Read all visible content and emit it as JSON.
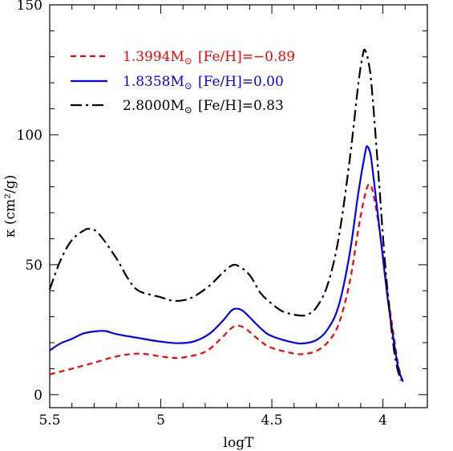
{
  "chart_data": {
    "type": "line",
    "title": "",
    "xlabel": "logT",
    "ylabel": "κ (cm²/g)",
    "xlim": [
      5.5,
      3.8
    ],
    "ylim": [
      -5,
      150
    ],
    "x_reversed": true,
    "grid": false,
    "legend_position": "top-left",
    "x_ticks": [
      {
        "value": 5.5,
        "label": "5.5"
      },
      {
        "value": 5.0,
        "label": "5"
      },
      {
        "value": 4.5,
        "label": "4.5"
      },
      {
        "value": 4.0,
        "label": "4"
      }
    ],
    "y_ticks": [
      {
        "value": 0,
        "label": "0"
      },
      {
        "value": 50,
        "label": "50"
      },
      {
        "value": 100,
        "label": "100"
      },
      {
        "value": 150,
        "label": "150"
      }
    ],
    "series": [
      {
        "name": "1.3994M⊙ [Fe/H]=−0.89",
        "mass": "1.3994M",
        "sun": "⊙",
        "feh": "[Fe/H]=−0.89",
        "color": "#ff0000",
        "dash": "dashed",
        "points": [
          [
            5.5,
            7.8
          ],
          [
            5.4,
            10.0
          ],
          [
            5.3,
            12.3
          ],
          [
            5.2,
            14.7
          ],
          [
            5.1,
            15.8
          ],
          [
            5.0,
            14.7
          ],
          [
            4.95,
            14.2
          ],
          [
            4.9,
            14.3
          ],
          [
            4.8,
            16.5
          ],
          [
            4.73,
            21.5
          ],
          [
            4.69,
            25.0
          ],
          [
            4.66,
            26.5
          ],
          [
            4.62,
            25.5
          ],
          [
            4.55,
            20.5
          ],
          [
            4.5,
            18.0
          ],
          [
            4.4,
            15.8
          ],
          [
            4.35,
            15.7
          ],
          [
            4.3,
            16.8
          ],
          [
            4.25,
            20.0
          ],
          [
            4.2,
            27.0
          ],
          [
            4.15,
            43.0
          ],
          [
            4.11,
            64.0
          ],
          [
            4.08,
            77.0
          ],
          [
            4.06,
            81.0
          ],
          [
            4.04,
            76.0
          ],
          [
            4.01,
            60.0
          ],
          [
            3.98,
            40.0
          ],
          [
            3.95,
            22.0
          ],
          [
            3.93,
            11.0
          ],
          [
            3.91,
            5.0
          ]
        ]
      },
      {
        "name": "1.8358M⊙ [Fe/H]=0.00",
        "mass": "1.8358M",
        "sun": "⊙",
        "feh": "[Fe/H]=0.00",
        "color": "#0000ff",
        "dash": "solid",
        "points": [
          [
            5.5,
            17.0
          ],
          [
            5.45,
            19.8
          ],
          [
            5.4,
            21.5
          ],
          [
            5.35,
            23.5
          ],
          [
            5.3,
            24.3
          ],
          [
            5.25,
            24.5
          ],
          [
            5.2,
            23.3
          ],
          [
            5.1,
            21.8
          ],
          [
            5.0,
            20.4
          ],
          [
            4.92,
            19.8
          ],
          [
            4.85,
            20.5
          ],
          [
            4.78,
            23.5
          ],
          [
            4.72,
            28.5
          ],
          [
            4.68,
            32.5
          ],
          [
            4.65,
            33.0
          ],
          [
            4.62,
            31.5
          ],
          [
            4.55,
            25.5
          ],
          [
            4.5,
            22.5
          ],
          [
            4.4,
            20.0
          ],
          [
            4.35,
            19.8
          ],
          [
            4.3,
            21.0
          ],
          [
            4.25,
            25.0
          ],
          [
            4.2,
            34.0
          ],
          [
            4.15,
            54.0
          ],
          [
            4.11,
            78.0
          ],
          [
            4.08,
            93.0
          ],
          [
            4.07,
            95.5
          ],
          [
            4.055,
            92.0
          ],
          [
            4.04,
            82.0
          ],
          [
            4.01,
            60.0
          ],
          [
            3.98,
            38.0
          ],
          [
            3.95,
            20.0
          ],
          [
            3.93,
            10.0
          ],
          [
            3.91,
            5.0
          ]
        ]
      },
      {
        "name": "2.8000M⊙ [Fe/H]=0.83",
        "mass": "2.8000M",
        "sun": "⊙",
        "feh": "[Fe/H]=0.83",
        "color": "#000000",
        "dash": "dashdot",
        "points": [
          [
            5.5,
            40.5
          ],
          [
            5.45,
            52.0
          ],
          [
            5.4,
            59.5
          ],
          [
            5.35,
            63.0
          ],
          [
            5.32,
            63.8
          ],
          [
            5.28,
            62.0
          ],
          [
            5.2,
            52.5
          ],
          [
            5.15,
            45.0
          ],
          [
            5.1,
            40.0
          ],
          [
            5.0,
            37.5
          ],
          [
            4.95,
            36.2
          ],
          [
            4.9,
            36.3
          ],
          [
            4.85,
            37.8
          ],
          [
            4.78,
            42.0
          ],
          [
            4.72,
            47.0
          ],
          [
            4.68,
            49.7
          ],
          [
            4.65,
            49.5
          ],
          [
            4.6,
            46.0
          ],
          [
            4.55,
            39.0
          ],
          [
            4.5,
            35.0
          ],
          [
            4.45,
            32.0
          ],
          [
            4.38,
            30.5
          ],
          [
            4.34,
            30.8
          ],
          [
            4.3,
            33.5
          ],
          [
            4.25,
            42.0
          ],
          [
            4.2,
            60.0
          ],
          [
            4.15,
            90.0
          ],
          [
            4.11,
            120.0
          ],
          [
            4.09,
            131.0
          ],
          [
            4.08,
            132.5
          ],
          [
            4.065,
            128.0
          ],
          [
            4.05,
            118.0
          ],
          [
            4.02,
            85.0
          ],
          [
            3.99,
            50.0
          ],
          [
            3.96,
            24.0
          ],
          [
            3.94,
            12.0
          ],
          [
            3.92,
            5.5
          ]
        ]
      }
    ]
  }
}
